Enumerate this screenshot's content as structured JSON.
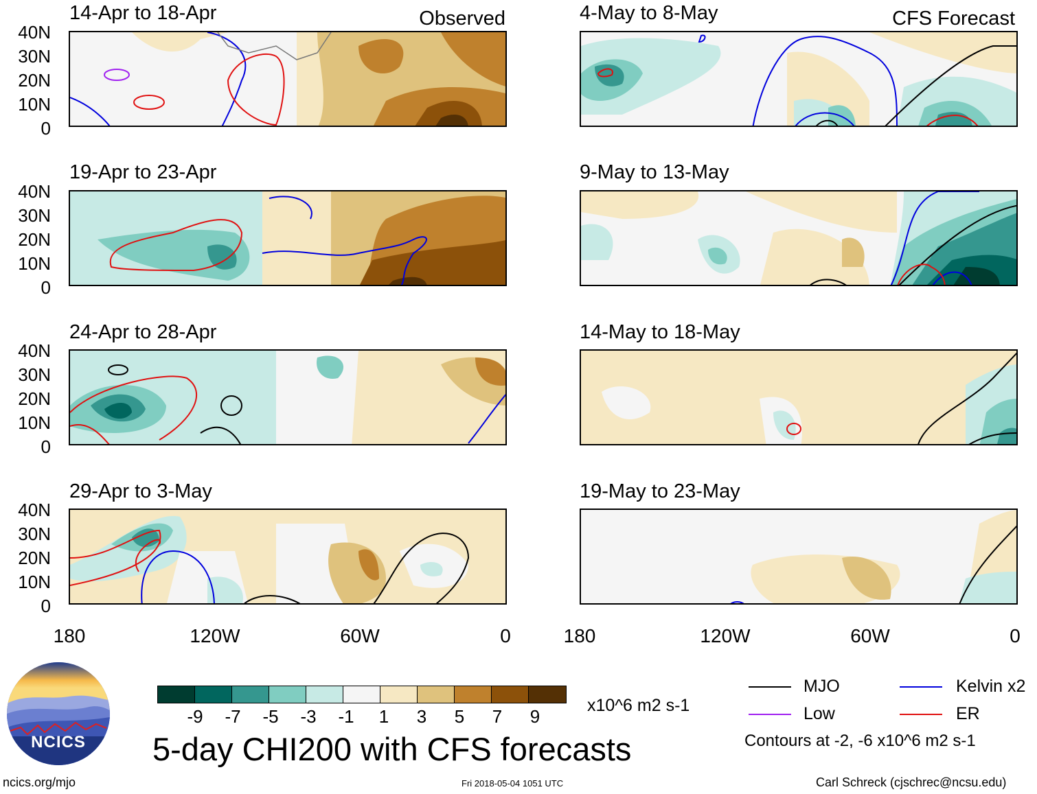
{
  "panels_left": {
    "label": "Observed",
    "titles": [
      "14-Apr to 18-Apr",
      "19-Apr to 23-Apr",
      "24-Apr to 28-Apr",
      "29-Apr to 3-May"
    ]
  },
  "panels_right": {
    "label": "CFS Forecast",
    "titles": [
      "4-May to 8-May",
      "9-May to 13-May",
      "14-May to 18-May",
      "19-May to 23-May"
    ]
  },
  "axes": {
    "y_labels": [
      "40N",
      "30N",
      "20N",
      "10N",
      "0"
    ],
    "x_labels": [
      "180",
      "120W",
      "60W",
      "0"
    ]
  },
  "colorbar": {
    "colors": [
      "#003c30",
      "#01665e",
      "#35978f",
      "#80cdc1",
      "#c7eae5",
      "#f5f5f5",
      "#f6e8c3",
      "#dfc27d",
      "#bf812d",
      "#8c510a",
      "#543005"
    ],
    "labels": [
      "-9",
      "-7",
      "-5",
      "-3",
      "-1",
      "1",
      "3",
      "5",
      "7",
      "9"
    ],
    "units": "x10^6 m2 s-1"
  },
  "legend": {
    "items": [
      {
        "label": "MJO",
        "color": "#000000"
      },
      {
        "label": "Kelvin x2",
        "color": "#0000dd"
      },
      {
        "label": "Low",
        "color": "#a020f0"
      },
      {
        "label": "ER",
        "color": "#e01010"
      }
    ],
    "note": "Contours at -2, -6 x10^6 m2 s-1"
  },
  "main_title": "5-day CHI200 with CFS forecasts",
  "logo_text": "NCICS",
  "footer": {
    "url": "ncics.org/mjo",
    "timestamp": "Fri 2018-05-04 1051 UTC",
    "credit": "Carl Schreck (cjschrec@ncsu.edu)"
  }
}
